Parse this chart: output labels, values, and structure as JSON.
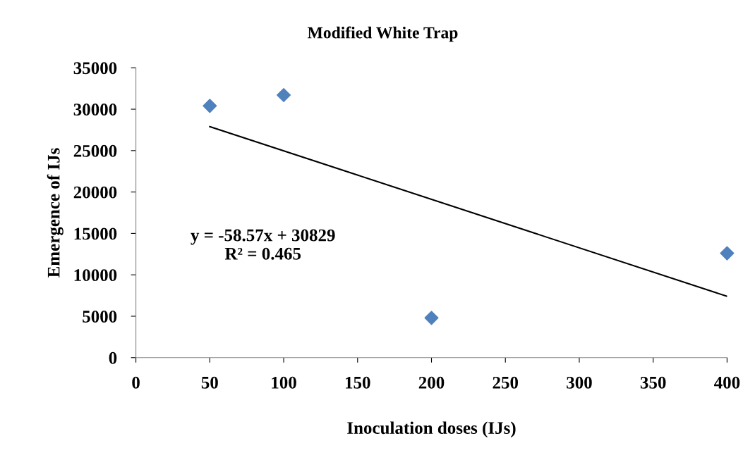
{
  "chart_data": {
    "type": "scatter",
    "title": "Modified White Trap",
    "xlabel": "Inoculation doses (IJs)",
    "ylabel": "Emergence of IJs",
    "x": [
      50,
      100,
      200,
      400
    ],
    "series": [
      {
        "color": "#4f81bd",
        "marker": "diamond",
        "values": [
          30400,
          31700,
          4800,
          12600
        ]
      },
      {
        "type": "line",
        "color": "#000000",
        "line_style": "solid",
        "marker": "none",
        "x": [
          50,
          400
        ],
        "values": [
          27900,
          7400
        ]
      }
    ],
    "annotations": [
      "y = -58.57x + 30829\nR² = 0.465"
    ],
    "xlim": [
      0,
      400
    ],
    "xticks": [
      0,
      50,
      100,
      150,
      200,
      250,
      300,
      350,
      400
    ],
    "ylim": [
      0,
      35000
    ],
    "yticks": [
      0,
      5000,
      10000,
      15000,
      20000,
      25000,
      30000,
      35000
    ],
    "grid": false,
    "legend": false
  }
}
